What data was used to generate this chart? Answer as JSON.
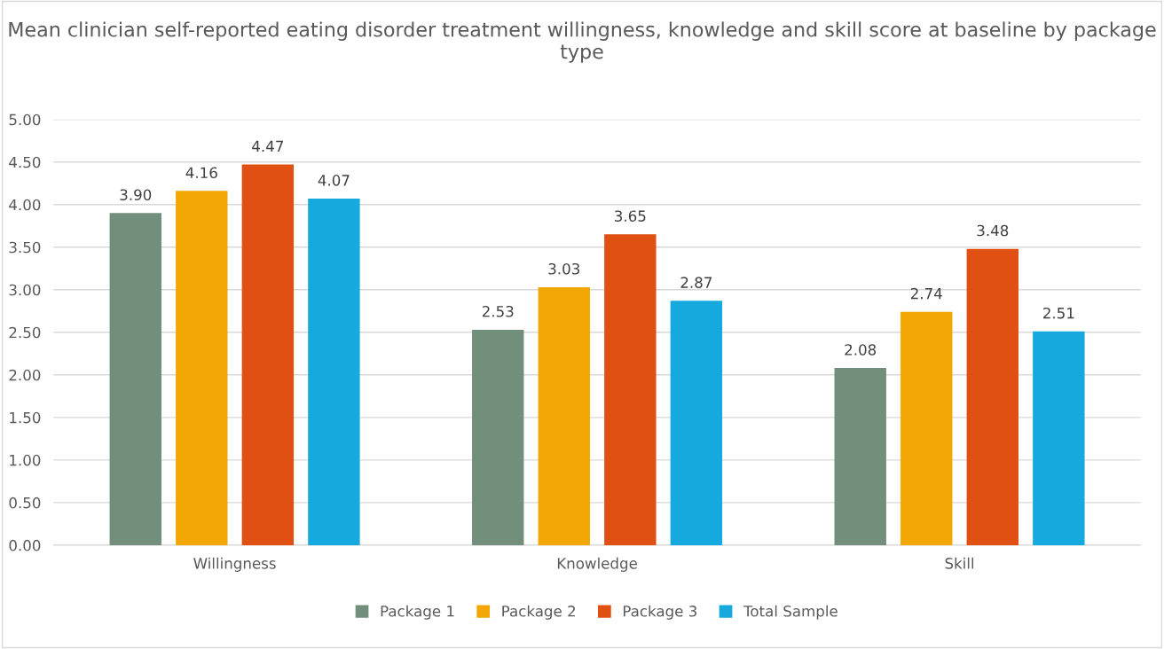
{
  "chart_data": {
    "type": "bar",
    "title": "Mean clinician self-reported eating disorder treatment willingness, knowledge and skill score at baseline by package type",
    "categories": [
      "Willingness",
      "Knowledge",
      "Skill"
    ],
    "series": [
      {
        "name": "Package 1",
        "color": "#728f7c",
        "values": [
          3.9,
          2.53,
          2.08
        ],
        "value_labels": [
          "3.90",
          "2.53",
          "2.08"
        ]
      },
      {
        "name": "Package 2",
        "color": "#f2a705",
        "values": [
          4.16,
          3.03,
          2.74
        ],
        "value_labels": [
          "4.16",
          "3.03",
          "2.74"
        ]
      },
      {
        "name": "Package 3",
        "color": "#e05013",
        "values": [
          4.47,
          3.65,
          3.48
        ],
        "value_labels": [
          "4.47",
          "3.65",
          "3.48"
        ]
      },
      {
        "name": "Total Sample",
        "color": "#15a9dd",
        "values": [
          4.07,
          2.87,
          2.51
        ],
        "value_labels": [
          "4.07",
          "2.87",
          "2.51"
        ]
      }
    ],
    "ylim": [
      0,
      5
    ],
    "yticks": [
      {
        "value": 0,
        "label": "0.00"
      },
      {
        "value": 0.5,
        "label": "0.50"
      },
      {
        "value": 1,
        "label": "1.00"
      },
      {
        "value": 1.5,
        "label": "1.50"
      },
      {
        "value": 2,
        "label": "2.00"
      },
      {
        "value": 2.5,
        "label": "2.50"
      },
      {
        "value": 3,
        "label": "3.00"
      },
      {
        "value": 3.5,
        "label": "3.50"
      },
      {
        "value": 4,
        "label": "4.00"
      },
      {
        "value": 4.5,
        "label": "4.50"
      },
      {
        "value": 5,
        "label": "5.00"
      }
    ],
    "grid": "y",
    "legend": "bottom"
  }
}
